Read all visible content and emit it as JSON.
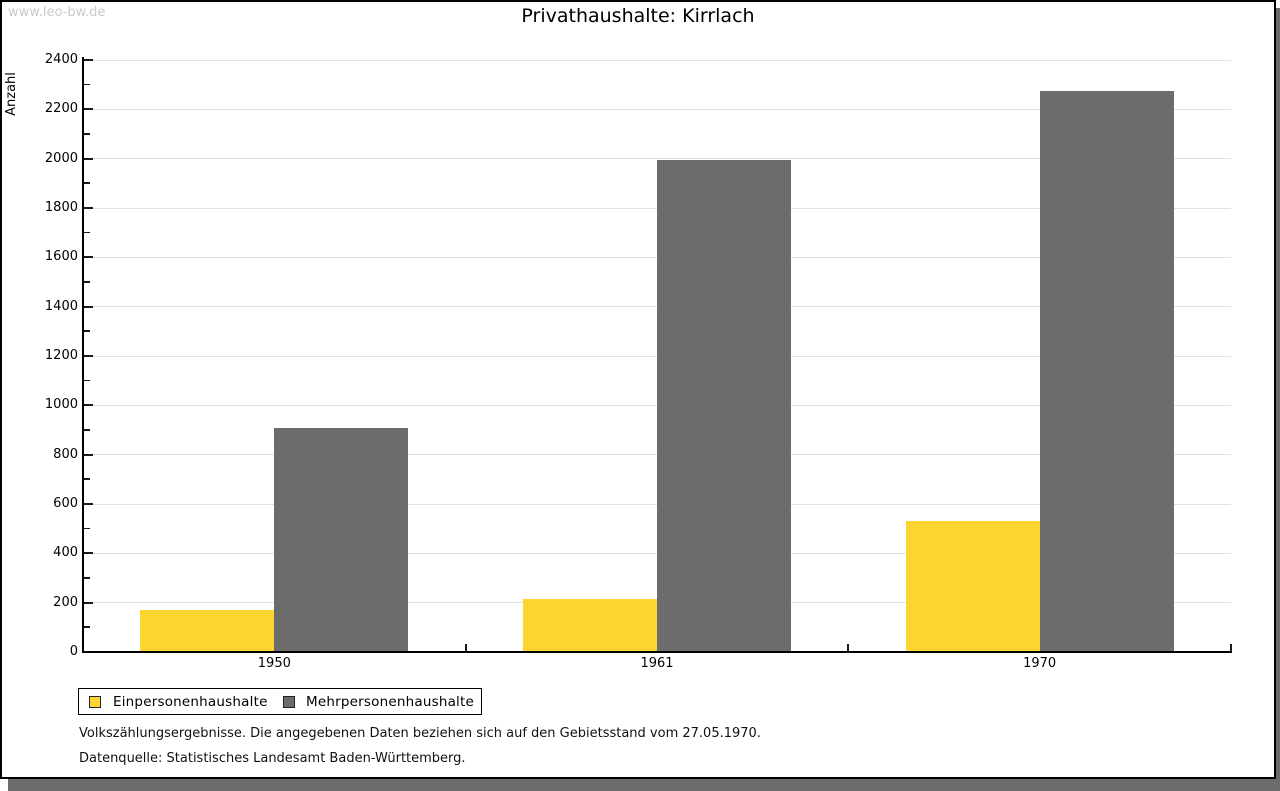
{
  "watermark": "www.leo-bw.de",
  "chart_data": {
    "type": "bar",
    "title": "Privathaushalte: Kirrlach",
    "categories": [
      "1950",
      "1961",
      "1970"
    ],
    "series": [
      {
        "name": "Einpersonenhaushalte",
        "color": "#FCD52E",
        "values": [
          170,
          215,
          530
        ]
      },
      {
        "name": "Mehrpersonenhaushalte",
        "color": "#6C6C6C",
        "values": [
          910,
          1995,
          2275
        ]
      }
    ],
    "xlabel": "",
    "ylabel": "Anzahl",
    "ylim": [
      0,
      2400
    ],
    "yticks": [
      0,
      200,
      400,
      600,
      800,
      1000,
      1200,
      1400,
      1600,
      1800,
      2000,
      2200,
      2400
    ],
    "minor_tick_step": 100,
    "grid": "horizontal-major",
    "gridline_color": "#E1E1E1",
    "legend_position": "bottom-left"
  },
  "footnotes": {
    "line1": "Volkszählungsergebnisse. Die angegebenen Daten beziehen sich auf den Gebietsstand vom 27.05.1970.",
    "line2": "Datenquelle: Statistisches Landesamt Baden-Württemberg."
  }
}
